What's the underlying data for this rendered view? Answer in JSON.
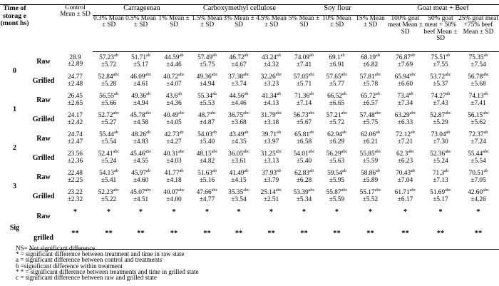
{
  "header": {
    "time_label": "Time of storag e (mont hs)",
    "groups": [
      "Carrageenan",
      "Carboxymethyl cellulose",
      "Soy flour",
      "Goat meat + Beef"
    ],
    "columns": [
      "Control Mean ± SD",
      "0.3% Mean ± SD",
      "0.5% Mean ± SD",
      "1% Mean ± SD",
      "1.5% Mean ± SD",
      "3% Mean ± SD",
      "4.5% Mean ± SD",
      "5% Mean ± SD",
      "10% Mean ± SD",
      "15% Mean ± SD",
      "100% goat meat Mean ± SD",
      "50% goat meat + 50% beef Mean ± SD",
      "25% goat meat +75% beef Mean ± SD"
    ]
  },
  "rows": [
    {
      "time": "0",
      "state": "Raw",
      "cells": [
        [
          "28.9",
          "",
          "±2.89"
        ],
        [
          "57.23",
          "ab",
          "±5.72"
        ],
        [
          "51.71",
          "ab",
          "±5.17"
        ],
        [
          "44.59",
          "ab",
          "±4.46"
        ],
        [
          "57.49",
          "ab",
          "±5.75"
        ],
        [
          "46.72",
          "ab",
          "±4.67"
        ],
        [
          "43.24",
          "ab",
          "±4.32"
        ],
        [
          "74.09",
          "ab",
          "±7.41"
        ],
        [
          "69.1",
          "ab",
          "±6.91"
        ],
        [
          "68.19",
          "ab",
          "±6.82"
        ],
        [
          "76.87",
          "ab",
          "±7.69"
        ],
        [
          "75.51",
          "ab",
          "±7.55"
        ],
        [
          "75.35",
          "ab",
          "±7.54"
        ]
      ]
    },
    {
      "time": "",
      "state": "Grilled",
      "cells": [
        [
          "24.77",
          "",
          "±2.48"
        ],
        [
          "52.84",
          "abc",
          "±5.28"
        ],
        [
          "46.09",
          "abc",
          "±4.61"
        ],
        [
          "40.72",
          "abc",
          "±4.07"
        ],
        [
          "49.36",
          "abc",
          "±4.94"
        ],
        [
          "37.38",
          "abc",
          "±3.74"
        ],
        [
          "32.26",
          "abc",
          "±3.23"
        ],
        [
          "57.05",
          "abc",
          "±5.71"
        ],
        [
          "57.65",
          "abc",
          "±5.77"
        ],
        [
          "57.81",
          "abc",
          "±5.78"
        ],
        [
          "65.94",
          "abc",
          "±6.60"
        ],
        [
          "53.72",
          "abc",
          "±5.37"
        ],
        [
          "56.78",
          "abc",
          "±5.68"
        ]
      ]
    },
    {
      "time": "1",
      "state": "Raw",
      "cells": [
        [
          "26.45",
          "",
          "±2.65"
        ],
        [
          "56.55",
          "ab",
          "±5.66"
        ],
        [
          "49.36",
          "ab",
          "±4.94"
        ],
        [
          "43.6",
          "ab",
          "±4.36"
        ],
        [
          "55.34",
          "ab",
          "±5.53"
        ],
        [
          "44.56",
          "ab",
          "±4.46"
        ],
        [
          "41.34",
          "ab",
          "±4.13"
        ],
        [
          "71.36",
          "ab",
          "±7.14"
        ],
        [
          "66.52",
          "ab",
          "±6.65"
        ],
        [
          "65.72",
          "ab",
          "±6.57"
        ],
        [
          "73.4",
          "ab",
          "±7.34"
        ],
        [
          "74.27",
          "ab",
          "±7.43"
        ],
        [
          "74.13",
          "ab",
          "±7.41"
        ]
      ]
    },
    {
      "time": "",
      "state": "Grilled",
      "cells": [
        [
          "24.17",
          "",
          "±2.42"
        ],
        [
          "52.72",
          "abc",
          "±5.27"
        ],
        [
          "45.78",
          "abc",
          "±4.58"
        ],
        [
          "40.49",
          "abc",
          "±4.05"
        ],
        [
          "48.7",
          "abc",
          "±4.87"
        ],
        [
          "36.75",
          "abc",
          "±3.68"
        ],
        [
          "31.79",
          "abc",
          "±3.18"
        ],
        [
          "56.73",
          "abc",
          "±5.67"
        ],
        [
          "57.21",
          "abc",
          "±5.72"
        ],
        [
          "57.48",
          "abc",
          "±5.75"
        ],
        [
          "63.29",
          "abc",
          "±6.33"
        ],
        [
          "52.87",
          "abc",
          "±5.29"
        ],
        [
          "56.15",
          "abc",
          "±5.62"
        ]
      ]
    },
    {
      "time": "2",
      "state": "Raw",
      "cells": [
        [
          "24.74",
          "",
          "±2.47"
        ],
        [
          "55.44",
          "ab",
          "±5.54"
        ],
        [
          "48.26",
          "ab",
          "±4.83"
        ],
        [
          "42.73",
          "ab",
          "±4.27"
        ],
        [
          "54.03",
          "ab",
          "±5.40"
        ],
        [
          "43.49",
          "ab",
          "±4.35"
        ],
        [
          "39.71",
          "ab",
          "±3.97"
        ],
        [
          "65.81",
          "ab",
          "±6.58"
        ],
        [
          "62.94",
          "ab",
          "±6.29"
        ],
        [
          "62.06",
          "ab",
          "±6.21"
        ],
        [
          "72.12",
          "ab",
          "±7.21"
        ],
        [
          "73.04",
          "ab",
          "±7.30"
        ],
        [
          "72.37",
          "ab",
          "±7.24"
        ]
      ]
    },
    {
      "time": "",
      "state": "Grilled",
      "cells": [
        [
          "23.56",
          "",
          "±2.36"
        ],
        [
          "52.41",
          "abc",
          "±5.24"
        ],
        [
          "45.46",
          "abc",
          "±4.55"
        ],
        [
          "40.31",
          "abc",
          "±4.03"
        ],
        [
          "48.15",
          "abc",
          "±4.82"
        ],
        [
          "36.05",
          "abc",
          "±3.61"
        ],
        [
          "31.25",
          "abc",
          "±3.13"
        ],
        [
          "54.01",
          "abc",
          "±5.40"
        ],
        [
          "56.29",
          "abc",
          "±5.63"
        ],
        [
          "55.85",
          "abc",
          "±5.59"
        ],
        [
          "62.3",
          "abc",
          "±6.23"
        ],
        [
          "52.36",
          "abc",
          "±5.24"
        ],
        [
          "55.44",
          "abc",
          "±5.54"
        ]
      ]
    },
    {
      "time": "3",
      "state": "Raw",
      "cells": [
        [
          "22.48",
          "",
          "±2.25"
        ],
        [
          "54.13",
          "ab",
          "±5.41"
        ],
        [
          "45.97",
          "ab",
          "±4.60"
        ],
        [
          "41.77",
          "ab",
          "±4.18"
        ],
        [
          "51.63",
          "ab",
          "±5.16"
        ],
        [
          "41.49",
          "ab",
          "±4.15"
        ],
        [
          "37.93",
          "ab",
          "±3.79"
        ],
        [
          "62.83",
          "ab",
          "±6.28"
        ],
        [
          "59.54",
          "ab",
          "±5.95"
        ],
        [
          "58.86",
          "ab",
          "±5.89"
        ],
        [
          "70.43",
          "ab",
          "±7.04"
        ],
        [
          "71.3",
          "ab",
          "±7.13"
        ],
        [
          "70.51",
          "ab",
          "±7.05"
        ]
      ]
    },
    {
      "time": "",
      "state": "Grilled",
      "cells": [
        [
          "23.22",
          "",
          "±2.32"
        ],
        [
          "52.23",
          "abc",
          "±5.22"
        ],
        [
          "45.07",
          "abc",
          "±4.51"
        ],
        [
          "40.07",
          "abc",
          "±4.00"
        ],
        [
          "47.66",
          "abc",
          "±4.77"
        ],
        [
          "35.35",
          "abc",
          "±3.54"
        ],
        [
          "25.14",
          "abc",
          "±2.51"
        ],
        [
          "53.39",
          "abc",
          "±5.34"
        ],
        [
          "55.87",
          "abc",
          "±5.59"
        ],
        [
          "55.17",
          "abc",
          "±5.52"
        ],
        [
          "61.71",
          "abc",
          "±6.17"
        ],
        [
          "51.69",
          "abc",
          "±5.17"
        ],
        [
          "42.60",
          "abc",
          "±4.26"
        ]
      ]
    }
  ],
  "sig": {
    "label": "Sig",
    "raw_label": "Raw",
    "grilled_label": "grilled",
    "raw_mark": "*",
    "grilled_mark": "**"
  },
  "notes": [
    "NS= Not significant difference",
    "* = significant difference between treatment and time in raw state",
    "a = significant difference between control and treatments",
    "b =significant difference within treatment",
    "* * = significant difference between treatments and time in grilled state",
    "c = significant difference between raw and grilled state"
  ]
}
